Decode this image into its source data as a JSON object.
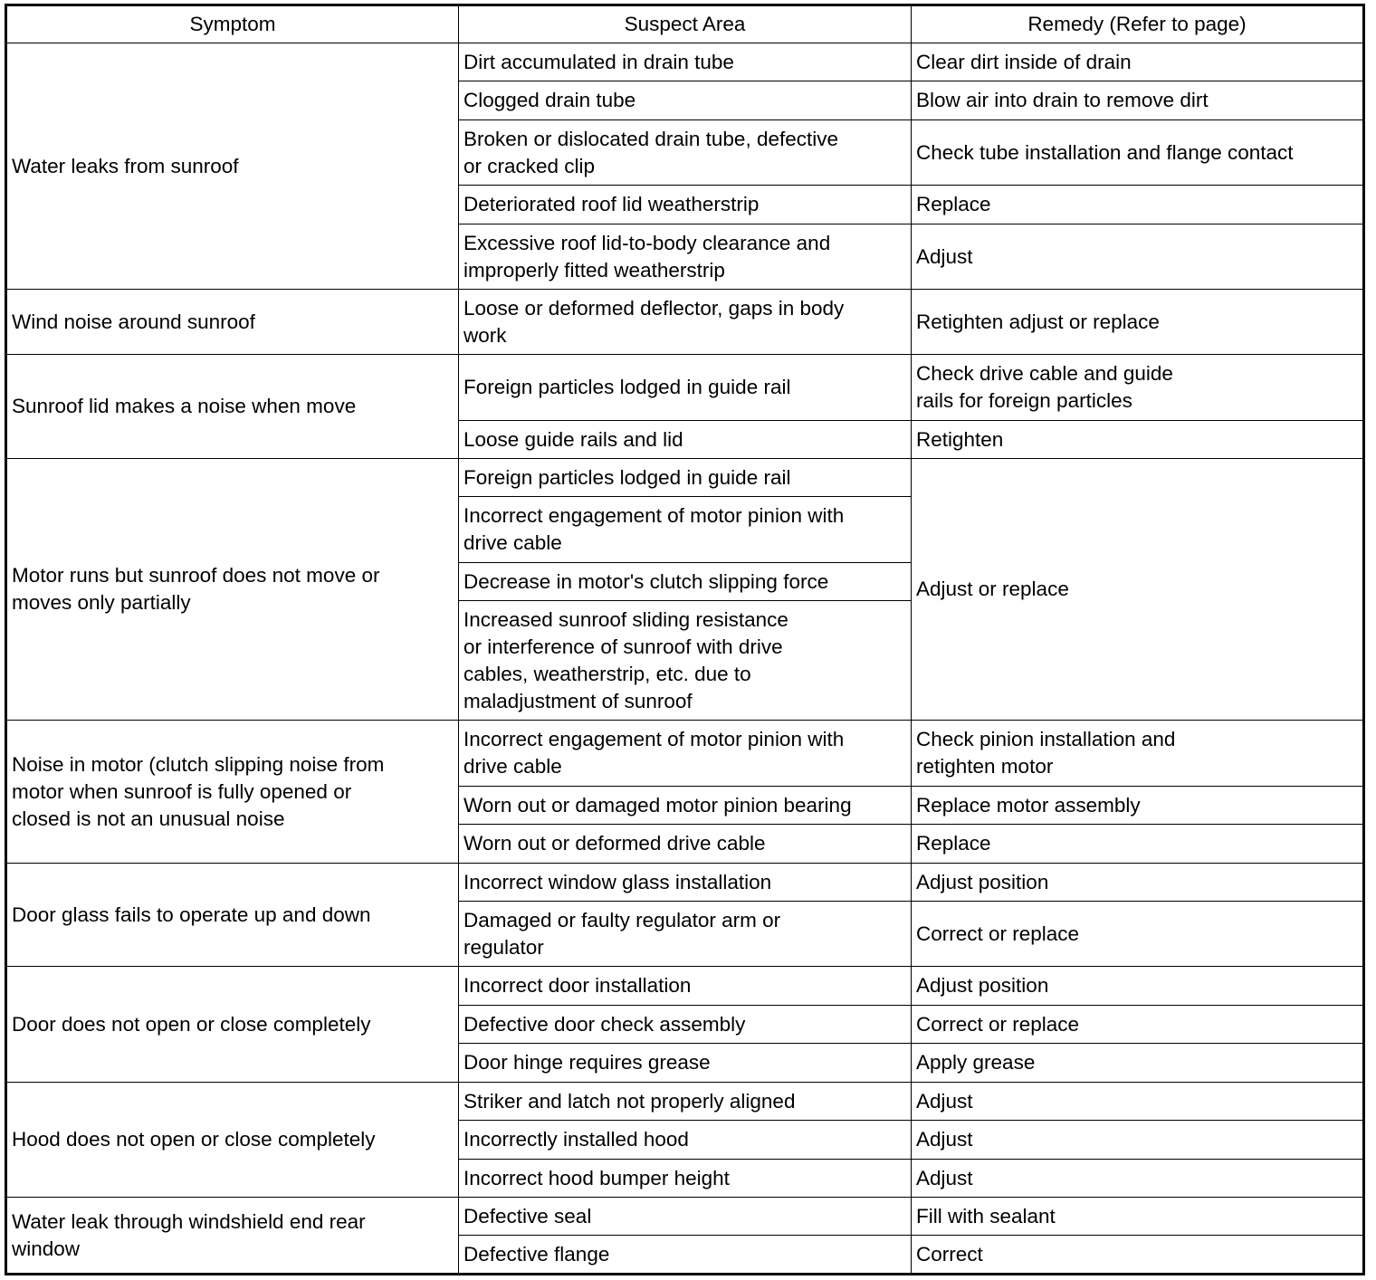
{
  "headers": [
    "Symptom",
    "Suspect Area",
    "Remedy (Refer to page)"
  ],
  "groups": [
    {
      "symptom": "Water leaks from sunroof",
      "items": [
        {
          "suspect": "Dirt accumulated in drain tube",
          "remedy": "Clear dirt inside of drain"
        },
        {
          "suspect": "Clogged drain tube",
          "remedy": "Blow air into drain to remove dirt"
        },
        {
          "suspect": "Broken or dislocated drain tube, defective\nor cracked clip",
          "remedy": "Check tube installation and flange contact"
        },
        {
          "suspect": "Deteriorated roof lid weatherstrip",
          "remedy": "Replace"
        },
        {
          "suspect": "Excessive roof lid-to-body clearance and\nimproperly fitted weatherstrip",
          "remedy": "Adjust"
        }
      ]
    },
    {
      "symptom": "Wind noise around sunroof",
      "items": [
        {
          "suspect": "Loose or deformed deflector, gaps in body\nwork",
          "remedy": "Retighten adjust or replace"
        }
      ]
    },
    {
      "symptom": "Sunroof lid makes a noise when move",
      "items": [
        {
          "suspect": "Foreign particles lodged in guide rail",
          "remedy": "Check drive cable and guide\nrails for foreign particles"
        },
        {
          "suspect": "Loose guide rails and lid",
          "remedy": "Retighten"
        }
      ]
    },
    {
      "symptom": "Motor runs but sunroof does not move or\nmoves only partially",
      "shared_remedy": "Adjust or replace",
      "items": [
        {
          "suspect": "Foreign particles lodged in guide rail"
        },
        {
          "suspect": "Incorrect engagement of motor pinion with\ndrive cable"
        },
        {
          "suspect": "Decrease in motor's clutch slipping force"
        },
        {
          "suspect": "Increased sunroof sliding resistance\nor interference of sunroof with drive\ncables, weatherstrip, etc. due to\nmaladjustment of sunroof"
        }
      ]
    },
    {
      "symptom": "Noise in motor (clutch slipping noise from\nmotor when sunroof is fully opened or\nclosed is not an unusual noise",
      "items": [
        {
          "suspect": "Incorrect engagement of motor pinion with\ndrive cable",
          "remedy": "Check pinion installation and\nretighten motor"
        },
        {
          "suspect": "Worn out or damaged motor pinion bearing",
          "remedy": "Replace motor assembly"
        },
        {
          "suspect": "Worn out or deformed drive cable",
          "remedy": "Replace"
        }
      ]
    },
    {
      "symptom": "Door glass fails to operate up and down",
      "items": [
        {
          "suspect": "Incorrect window glass installation",
          "remedy": "Adjust position"
        },
        {
          "suspect": "Damaged or faulty regulator arm or\nregulator",
          "remedy": "Correct or replace"
        }
      ]
    },
    {
      "symptom": "Door does not open or close completely",
      "items": [
        {
          "suspect": "Incorrect door installation",
          "remedy": "Adjust position"
        },
        {
          "suspect": "Defective door check assembly",
          "remedy": "Correct or replace"
        },
        {
          "suspect": "Door hinge requires grease",
          "remedy": "Apply grease"
        }
      ]
    },
    {
      "symptom": "Hood does not open or close completely",
      "items": [
        {
          "suspect": "Striker and latch not properly aligned",
          "remedy": "Adjust"
        },
        {
          "suspect": "Incorrectly installed hood",
          "remedy": "Adjust"
        },
        {
          "suspect": "Incorrect hood bumper height",
          "remedy": "Adjust"
        }
      ]
    },
    {
      "symptom": "Water leak through windshield end rear\nwindow",
      "items": [
        {
          "suspect": "Defective seal",
          "remedy": "Fill with sealant"
        },
        {
          "suspect": "Defective flange",
          "remedy": "Correct"
        }
      ]
    }
  ]
}
